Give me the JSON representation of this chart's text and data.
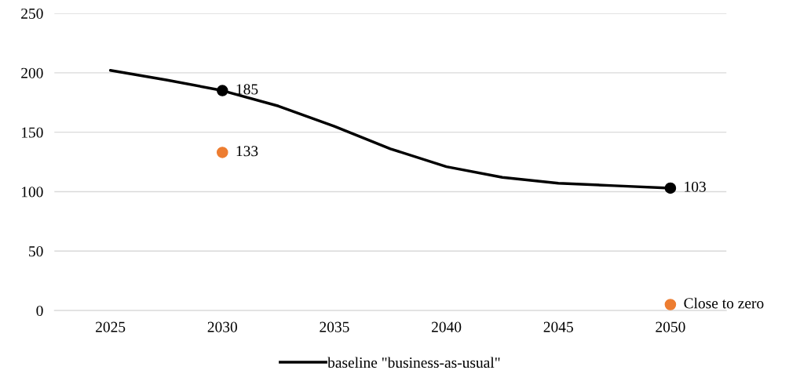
{
  "chart_data": {
    "type": "line",
    "series": [
      {
        "name": "baseline \"business-as-usual\"",
        "color": "#000000",
        "x": [
          2025,
          2027.5,
          2030,
          2032.5,
          2035,
          2037.5,
          2040,
          2042.5,
          2045,
          2047.5,
          2050
        ],
        "values": [
          202,
          194,
          185,
          172,
          155,
          136,
          121,
          112,
          107,
          105,
          103
        ]
      },
      {
        "type": "scatter",
        "marker": "circle",
        "color": "#000000",
        "x": [
          2030,
          2050
        ],
        "values": [
          185,
          103
        ],
        "value_labels": [
          "185",
          "103"
        ]
      },
      {
        "type": "scatter",
        "marker": "circle",
        "color": "#ed7d31",
        "x": [
          2030,
          2050
        ],
        "values": [
          133,
          5
        ],
        "value_labels": [
          "133",
          "Close to zero"
        ]
      }
    ],
    "xlim": [
      2022.5,
      2052.5
    ],
    "xticks": [
      2025,
      2030,
      2035,
      2040,
      2045,
      2050
    ],
    "ylim": [
      0,
      250
    ],
    "yticks": [
      0,
      50,
      100,
      150,
      200,
      250
    ],
    "grid": "y",
    "legend": "bottom",
    "line_style": "solid"
  }
}
